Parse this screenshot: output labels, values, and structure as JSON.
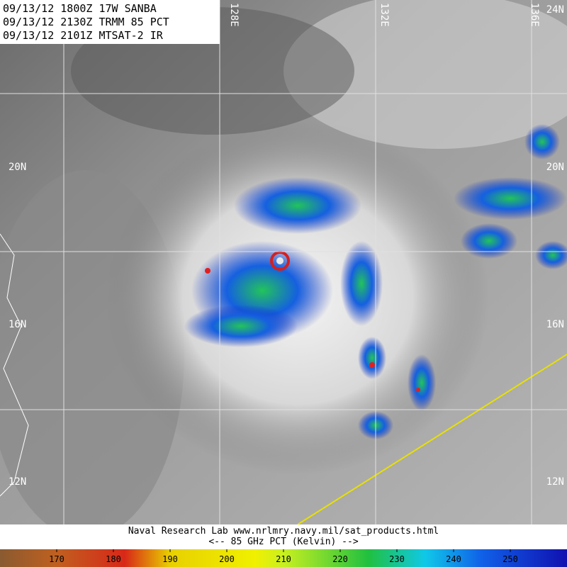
{
  "header": {
    "lines": [
      "09/13/12 1800Z 17W SANBA",
      "09/13/12 2130Z TRMM 85 PCT",
      "09/13/12 2101Z MTSAT-2 IR"
    ]
  },
  "grid_labels": {
    "lat_left": [
      "20N",
      "16N",
      "12N"
    ],
    "lat_right": [
      "24N",
      "20N",
      "16N",
      "12N"
    ],
    "lon_top": [
      "128E",
      "132E",
      "136E"
    ]
  },
  "footer": {
    "credit": "Naval Research Lab  www.nrlmry.navy.mil/sat_products.html",
    "scale_title": "<--    85 GHz PCT (Kelvin)   -->"
  },
  "colorbar": {
    "lim": [
      160,
      260
    ],
    "ticks": [
      170,
      180,
      190,
      200,
      210,
      220,
      230,
      240,
      250
    ]
  }
}
